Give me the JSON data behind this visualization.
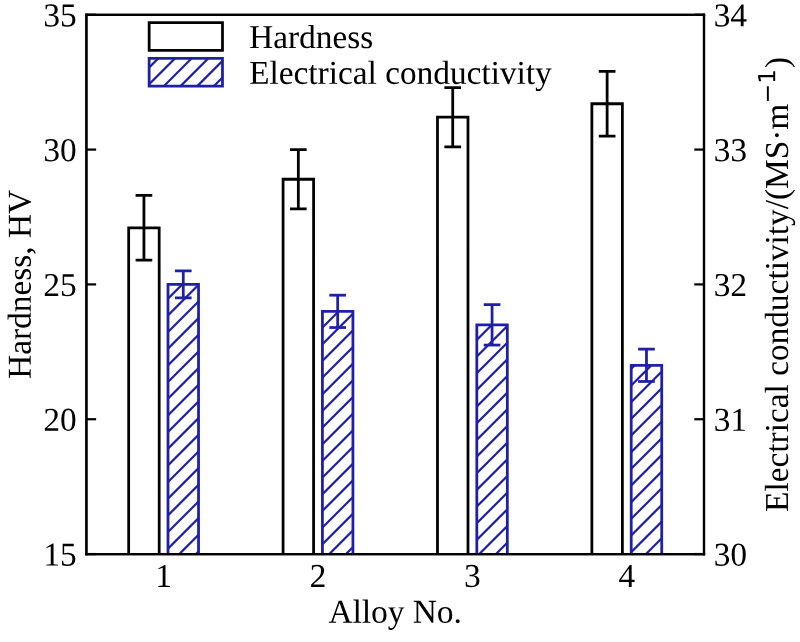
{
  "chart_data": {
    "type": "bar",
    "categories": [
      "1",
      "2",
      "3",
      "4"
    ],
    "xlabel": "Alloy No.",
    "ylabel": "Hardness, HV",
    "y2label": "Electrical conductivity/(MS·m$^{−1}$)",
    "series": [
      {
        "name": "Hardness",
        "color": "#000000",
        "values": [
          27.1,
          28.9,
          31.2,
          31.7
        ],
        "errors": [
          1.2,
          1.1,
          1.1,
          1.2
        ]
      },
      {
        "name": "Electrical conductivity",
        "color": "#1f1fa8",
        "axis": "y2",
        "values": [
          32.0,
          31.8,
          31.7,
          31.4
        ],
        "errors": [
          0.1,
          0.12,
          0.15,
          0.12
        ]
      }
    ],
    "ylim": [
      15,
      35
    ],
    "yticks": [
      15,
      20,
      25,
      30,
      35
    ],
    "y2lim": [
      30,
      34
    ],
    "y2ticks": [
      30,
      31,
      32,
      33,
      34
    ],
    "legend": "top left",
    "grid": false
  }
}
